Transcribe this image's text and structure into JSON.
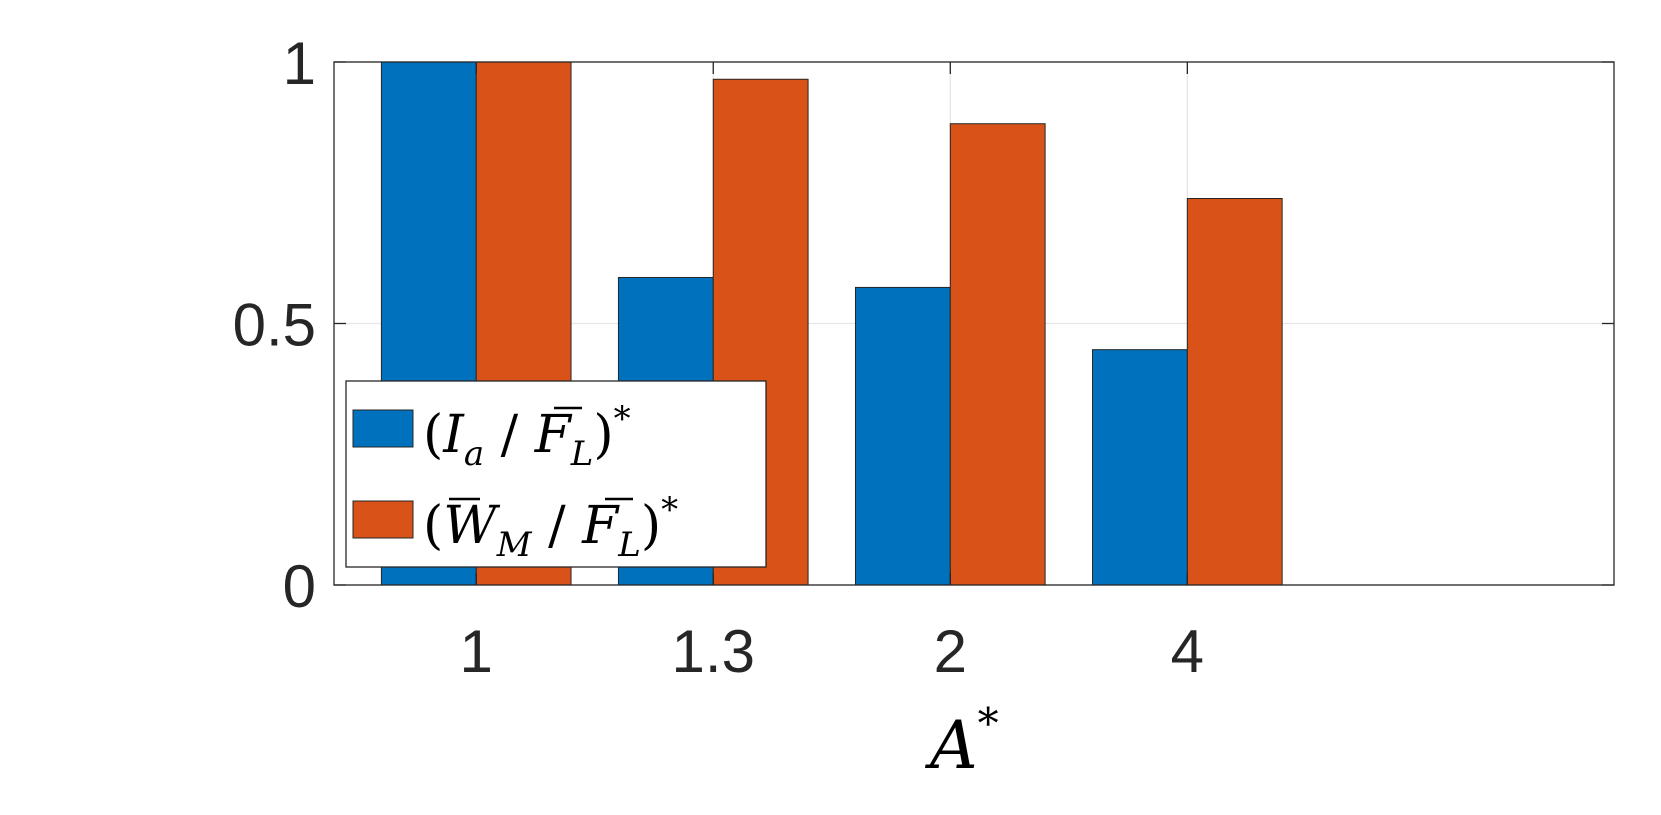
{
  "chart_data": {
    "type": "bar",
    "title": "",
    "xlabel": "A*",
    "ylabel": "",
    "categories": [
      "1",
      "1.3",
      "2",
      "4"
    ],
    "x_limits": [
      0.4,
      5.8
    ],
    "ylim": [
      0,
      1
    ],
    "yticks": [
      0,
      0.5,
      1
    ],
    "ytick_labels": [
      "0",
      "0.5",
      "1"
    ],
    "grid": true,
    "legend_location": "south-west",
    "series": [
      {
        "name": "(I_a / F̄_L)*",
        "color": "#0072BD",
        "values": [
          1.0,
          0.588,
          0.569,
          0.45
        ]
      },
      {
        "name": "(W̄_M / F̄_L)*",
        "color": "#D95319",
        "values": [
          1.0,
          0.967,
          0.882,
          0.739
        ]
      }
    ],
    "legend": {
      "entries": [
        {
          "series": 0,
          "base": "I",
          "sub": "a",
          "den_base": "F",
          "den_sub": "L",
          "sup": "*"
        },
        {
          "series": 1,
          "base": "W",
          "sub": "M",
          "den_base": "F",
          "den_sub": "L",
          "sup": "*"
        }
      ]
    }
  }
}
